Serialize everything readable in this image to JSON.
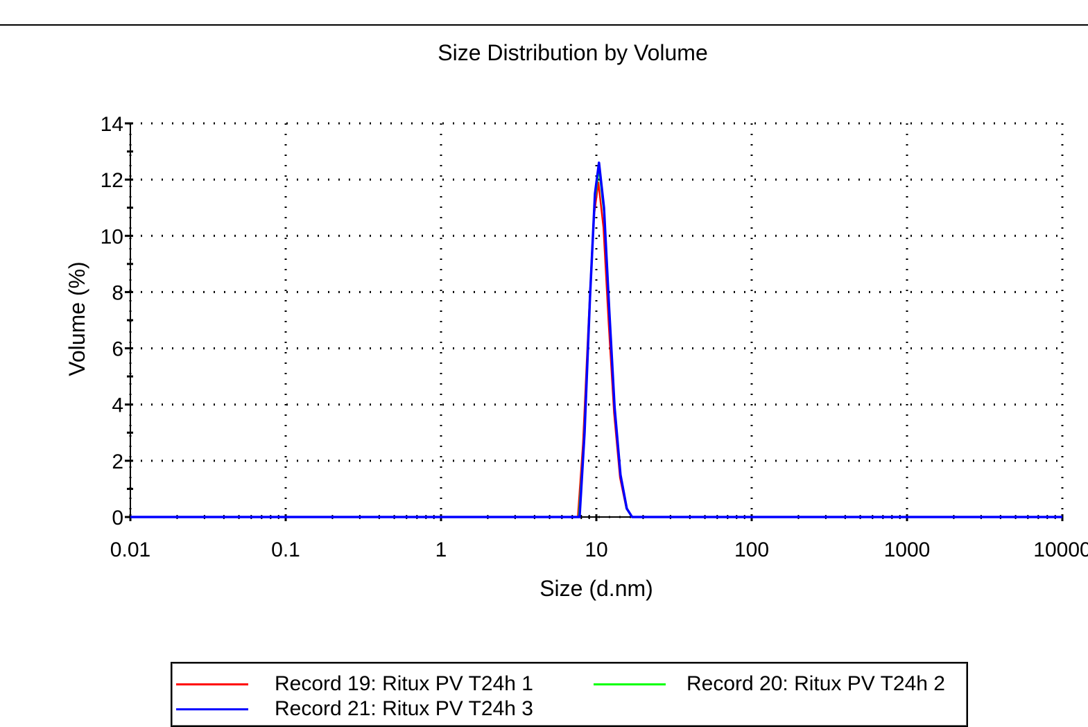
{
  "chart_data": {
    "type": "line",
    "title": "Size Distribution by Volume",
    "xlabel": "Size (d.nm)",
    "ylabel": "Volume (%)",
    "x_scale": "log",
    "xlim": [
      0.01,
      10000
    ],
    "ylim": [
      0,
      14
    ],
    "x_ticks": [
      0.01,
      0.1,
      1,
      10,
      100,
      1000,
      10000
    ],
    "x_tick_labels": [
      "0.01",
      "0.1",
      "1",
      "10",
      "100",
      "1000",
      "10000"
    ],
    "y_ticks": [
      0,
      2,
      4,
      6,
      8,
      10,
      12,
      14
    ],
    "y_tick_labels": [
      "0",
      "2",
      "4",
      "6",
      "8",
      "10",
      "12",
      "14"
    ],
    "grid": true,
    "legend_position": "bottom",
    "series": [
      {
        "name": "Record 19: Ritux PV T24h 1",
        "color": "#ff0000",
        "x": [
          0.01,
          7.6,
          8.2,
          8.9,
          9.6,
          10.3,
          11.1,
          12.0,
          13.0,
          14.2,
          15.6,
          17.0,
          10000
        ],
        "y": [
          0,
          0,
          2.6,
          6.9,
          10.6,
          11.9,
          10.3,
          6.9,
          3.7,
          1.4,
          0.3,
          0,
          0
        ]
      },
      {
        "name": "Record 20: Ritux PV T24h 2",
        "color": "#00ff00",
        "x": [
          0.01,
          7.7,
          8.3,
          9.0,
          9.7,
          10.4,
          11.2,
          12.1,
          13.1,
          14.3,
          15.6,
          17.0,
          10000
        ],
        "y": [
          0,
          0,
          2.7,
          7.3,
          11.1,
          12.4,
          10.8,
          7.2,
          3.8,
          1.5,
          0.3,
          0,
          0
        ]
      },
      {
        "name": "Record 21: Ritux PV T24h 3",
        "color": "#0000ff",
        "x": [
          0.01,
          7.8,
          8.4,
          9.1,
          9.8,
          10.4,
          11.2,
          12.1,
          13.1,
          14.3,
          15.7,
          17.0,
          10000
        ],
        "y": [
          0,
          0,
          3.0,
          7.8,
          11.5,
          12.6,
          11.0,
          7.4,
          3.9,
          1.5,
          0.3,
          0,
          0
        ]
      }
    ]
  }
}
